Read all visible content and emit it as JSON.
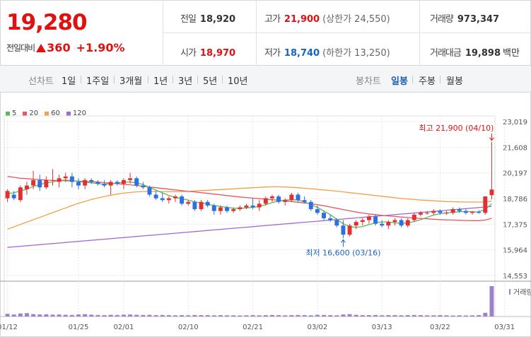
{
  "quote": {
    "price": "19,280",
    "change_label": "전일대비",
    "change_abs": "360",
    "change_pct": "+1.90%"
  },
  "stats": {
    "prev_close": {
      "label": "전일",
      "value": "18,920"
    },
    "high": {
      "label": "고가",
      "value": "21,900",
      "note": "(상한가 24,550)"
    },
    "volume": {
      "label": "거래량",
      "value": "973,347"
    },
    "open": {
      "label": "시가",
      "value": "18,970"
    },
    "low": {
      "label": "저가",
      "value": "18,740",
      "note": "(하한가 13,250)"
    },
    "amount": {
      "label": "거래대금",
      "value": "19,898",
      "unit": "백만"
    }
  },
  "periods": {
    "label": "선차트",
    "items": [
      "1일",
      "1주일",
      "3개월",
      "1년",
      "3년",
      "5년",
      "10년"
    ]
  },
  "candle_tabs": {
    "label": "봉차트",
    "items": [
      "일봉",
      "주봉",
      "월봉"
    ],
    "active": "일봉"
  },
  "colors": {
    "up": "#e0302f",
    "down": "#2f6fe0",
    "ma5": "#5cb85c",
    "ma20": "#e8585f",
    "ma60": "#f0a14a",
    "ma120": "#a06bd0",
    "volume": "#9b82c9"
  },
  "chart_data": {
    "type": "candlestick",
    "legend": [
      "5",
      "20",
      "60",
      "120"
    ],
    "y_ticks": [
      "23,019",
      "21,608",
      "20,197",
      "18,786",
      "17,375",
      "15,964",
      "14,553"
    ],
    "ylim": [
      14553,
      23019
    ],
    "x_ticks": [
      "01/12",
      "01/25",
      "02/01",
      "02/10",
      "02/21",
      "03/02",
      "03/13",
      "03/22",
      "03/31"
    ],
    "x_tick_index": [
      0,
      11,
      18,
      28,
      38,
      48,
      58,
      67,
      77
    ],
    "candles": [
      {
        "o": 18800,
        "h": 19300,
        "l": 18600,
        "c": 19200
      },
      {
        "o": 19000,
        "h": 19200,
        "l": 18700,
        "c": 18800
      },
      {
        "o": 18700,
        "h": 19500,
        "l": 18600,
        "c": 19400
      },
      {
        "o": 19300,
        "h": 19700,
        "l": 19000,
        "c": 19500
      },
      {
        "o": 19500,
        "h": 20300,
        "l": 19300,
        "c": 19800
      },
      {
        "o": 19800,
        "h": 20100,
        "l": 19200,
        "c": 19400
      },
      {
        "o": 19400,
        "h": 20000,
        "l": 19300,
        "c": 19800
      },
      {
        "o": 19800,
        "h": 20400,
        "l": 19500,
        "c": 19800
      },
      {
        "o": 19700,
        "h": 20100,
        "l": 19400,
        "c": 19900
      },
      {
        "o": 19900,
        "h": 20200,
        "l": 19700,
        "c": 20000
      },
      {
        "o": 20000,
        "h": 20200,
        "l": 19400,
        "c": 19700
      },
      {
        "o": 19700,
        "h": 19900,
        "l": 19300,
        "c": 19500
      },
      {
        "o": 19500,
        "h": 19900,
        "l": 19300,
        "c": 19800
      },
      {
        "o": 19800,
        "h": 19900,
        "l": 19600,
        "c": 19700
      },
      {
        "o": 19700,
        "h": 19800,
        "l": 19500,
        "c": 19600
      },
      {
        "o": 19600,
        "h": 19800,
        "l": 19400,
        "c": 19500
      },
      {
        "o": 19500,
        "h": 19800,
        "l": 19000,
        "c": 19700
      },
      {
        "o": 19700,
        "h": 19800,
        "l": 19500,
        "c": 19600
      },
      {
        "o": 19600,
        "h": 19900,
        "l": 19300,
        "c": 19800
      },
      {
        "o": 19800,
        "h": 20200,
        "l": 19600,
        "c": 19900
      },
      {
        "o": 19900,
        "h": 20000,
        "l": 19400,
        "c": 19500
      },
      {
        "o": 19500,
        "h": 19700,
        "l": 19300,
        "c": 19400
      },
      {
        "o": 19400,
        "h": 19500,
        "l": 18900,
        "c": 19000
      },
      {
        "o": 19000,
        "h": 19200,
        "l": 18700,
        "c": 18800
      },
      {
        "o": 18800,
        "h": 19100,
        "l": 18600,
        "c": 18700
      },
      {
        "o": 18700,
        "h": 18900,
        "l": 18500,
        "c": 18800
      },
      {
        "o": 18800,
        "h": 19000,
        "l": 18600,
        "c": 18900
      },
      {
        "o": 18900,
        "h": 19000,
        "l": 18400,
        "c": 18500
      },
      {
        "o": 18500,
        "h": 18700,
        "l": 18400,
        "c": 18600
      },
      {
        "o": 18600,
        "h": 18700,
        "l": 18100,
        "c": 18200
      },
      {
        "o": 18200,
        "h": 18700,
        "l": 18100,
        "c": 18600
      },
      {
        "o": 18600,
        "h": 18700,
        "l": 18300,
        "c": 18400
      },
      {
        "o": 18400,
        "h": 18500,
        "l": 17900,
        "c": 18100
      },
      {
        "o": 18100,
        "h": 18400,
        "l": 17900,
        "c": 18300
      },
      {
        "o": 18300,
        "h": 18400,
        "l": 18000,
        "c": 18100
      },
      {
        "o": 18100,
        "h": 18300,
        "l": 18000,
        "c": 18200
      },
      {
        "o": 18200,
        "h": 18400,
        "l": 18100,
        "c": 18300
      },
      {
        "o": 18300,
        "h": 18500,
        "l": 18200,
        "c": 18400
      },
      {
        "o": 18400,
        "h": 18800,
        "l": 18200,
        "c": 18300
      },
      {
        "o": 18300,
        "h": 18700,
        "l": 18100,
        "c": 18500
      },
      {
        "o": 18500,
        "h": 18900,
        "l": 18400,
        "c": 18800
      },
      {
        "o": 18800,
        "h": 19000,
        "l": 18600,
        "c": 18900
      },
      {
        "o": 18900,
        "h": 19000,
        "l": 18500,
        "c": 18600
      },
      {
        "o": 18600,
        "h": 18800,
        "l": 18400,
        "c": 18700
      },
      {
        "o": 18700,
        "h": 19100,
        "l": 18600,
        "c": 19000
      },
      {
        "o": 19000,
        "h": 19100,
        "l": 18600,
        "c": 18700
      },
      {
        "o": 18700,
        "h": 18900,
        "l": 18500,
        "c": 18600
      },
      {
        "o": 18600,
        "h": 18700,
        "l": 18100,
        "c": 18200
      },
      {
        "o": 18200,
        "h": 18400,
        "l": 17900,
        "c": 18000
      },
      {
        "o": 18000,
        "h": 18100,
        "l": 17600,
        "c": 17700
      },
      {
        "o": 17700,
        "h": 17900,
        "l": 17500,
        "c": 17600
      },
      {
        "o": 17600,
        "h": 17700,
        "l": 17200,
        "c": 17300
      },
      {
        "o": 17300,
        "h": 17600,
        "l": 16600,
        "c": 16800
      },
      {
        "o": 16800,
        "h": 17400,
        "l": 16700,
        "c": 17300
      },
      {
        "o": 17300,
        "h": 17600,
        "l": 17100,
        "c": 17500
      },
      {
        "o": 17500,
        "h": 17700,
        "l": 17300,
        "c": 17600
      },
      {
        "o": 17600,
        "h": 17900,
        "l": 17400,
        "c": 17800
      },
      {
        "o": 17800,
        "h": 17900,
        "l": 17300,
        "c": 17400
      },
      {
        "o": 17400,
        "h": 17600,
        "l": 17200,
        "c": 17300
      },
      {
        "o": 17300,
        "h": 17600,
        "l": 17100,
        "c": 17500
      },
      {
        "o": 17500,
        "h": 17700,
        "l": 17300,
        "c": 17600
      },
      {
        "o": 17600,
        "h": 17700,
        "l": 17200,
        "c": 17300
      },
      {
        "o": 17300,
        "h": 17700,
        "l": 17200,
        "c": 17600
      },
      {
        "o": 17600,
        "h": 18000,
        "l": 17500,
        "c": 17900
      },
      {
        "o": 17900,
        "h": 18100,
        "l": 17800,
        "c": 18000
      },
      {
        "o": 18000,
        "h": 18100,
        "l": 17900,
        "c": 18000
      },
      {
        "o": 18000,
        "h": 18200,
        "l": 17900,
        "c": 18100
      },
      {
        "o": 18100,
        "h": 18200,
        "l": 17900,
        "c": 18000
      },
      {
        "o": 18000,
        "h": 18100,
        "l": 17900,
        "c": 18000
      },
      {
        "o": 18000,
        "h": 18300,
        "l": 17900,
        "c": 18200
      },
      {
        "o": 18200,
        "h": 18300,
        "l": 18000,
        "c": 18100
      },
      {
        "o": 18100,
        "h": 18200,
        "l": 17900,
        "c": 18000
      },
      {
        "o": 18000,
        "h": 18100,
        "l": 17900,
        "c": 18050
      },
      {
        "o": 18050,
        "h": 18150,
        "l": 17950,
        "c": 18000
      },
      {
        "o": 18000,
        "h": 18900,
        "l": 17900,
        "c": 18900
      },
      {
        "o": 18970,
        "h": 21900,
        "l": 18740,
        "c": 19280
      }
    ],
    "ma5": [
      19050,
      19100,
      19200,
      19300,
      19450,
      19550,
      19650,
      19700,
      19780,
      19800,
      19780,
      19720,
      19680,
      19650,
      19600,
      19580,
      19600,
      19640,
      19680,
      19700,
      19650,
      19550,
      19400,
      19250,
      19100,
      18950,
      18850,
      18780,
      18700,
      18600,
      18550,
      18480,
      18400,
      18350,
      18300,
      18250,
      18250,
      18270,
      18300,
      18350,
      18450,
      18560,
      18650,
      18700,
      18720,
      18700,
      18600,
      18450,
      18300,
      18100,
      17900,
      17650,
      17400,
      17250,
      17200,
      17250,
      17350,
      17450,
      17500,
      17500,
      17450,
      17420,
      17450,
      17520,
      17620,
      17750,
      17880,
      17950,
      18000,
      18030,
      18060,
      18070,
      18060,
      18050,
      18200,
      18500
    ],
    "ma20": [
      20000,
      19950,
      19900,
      19880,
      19850,
      19830,
      19800,
      19780,
      19770,
      19760,
      19750,
      19740,
      19730,
      19710,
      19690,
      19660,
      19630,
      19600,
      19570,
      19540,
      19500,
      19460,
      19420,
      19380,
      19340,
      19300,
      19260,
      19220,
      19180,
      19150,
      19110,
      19070,
      19030,
      18990,
      18950,
      18910,
      18870,
      18840,
      18810,
      18780,
      18750,
      18720,
      18690,
      18660,
      18620,
      18580,
      18540,
      18500,
      18450,
      18390,
      18320,
      18250,
      18180,
      18110,
      18040,
      17990,
      17940,
      17900,
      17860,
      17830,
      17800,
      17770,
      17740,
      17710,
      17690,
      17670,
      17650,
      17630,
      17610,
      17600,
      17590,
      17580,
      17570,
      17570,
      17600,
      17700
    ],
    "ma60": [
      17100,
      17230,
      17360,
      17490,
      17620,
      17750,
      17880,
      18010,
      18140,
      18270,
      18400,
      18520,
      18630,
      18730,
      18820,
      18900,
      18970,
      19030,
      19080,
      19120,
      19150,
      19170,
      19180,
      19180,
      19170,
      19160,
      19160,
      19170,
      19180,
      19200,
      19220,
      19240,
      19260,
      19280,
      19300,
      19320,
      19340,
      19360,
      19380,
      19400,
      19420,
      19430,
      19430,
      19420,
      19400,
      19380,
      19350,
      19320,
      19290,
      19260,
      19230,
      19190,
      19150,
      19110,
      19070,
      19030,
      18990,
      18950,
      18910,
      18870,
      18830,
      18790,
      18760,
      18730,
      18700,
      18680,
      18660,
      18640,
      18620,
      18610,
      18600,
      18590,
      18590,
      18590,
      18600,
      18640
    ],
    "ma120": [
      16100,
      16130,
      16160,
      16190,
      16220,
      16250,
      16280,
      16310,
      16340,
      16370,
      16400,
      16430,
      16460,
      16490,
      16520,
      16550,
      16580,
      16610,
      16640,
      16670,
      16700,
      16730,
      16760,
      16790,
      16820,
      16850,
      16880,
      16910,
      16940,
      16970,
      17000,
      17030,
      17060,
      17090,
      17120,
      17150,
      17180,
      17210,
      17240,
      17270,
      17300,
      17330,
      17360,
      17390,
      17420,
      17450,
      17480,
      17510,
      17540,
      17570,
      17600,
      17630,
      17660,
      17690,
      17720,
      17750,
      17780,
      17810,
      17840,
      17870,
      17900,
      17930,
      17960,
      17990,
      18020,
      18050,
      18080,
      18110,
      18140,
      18170,
      18200,
      18230,
      18260,
      18290,
      18320,
      18350
    ],
    "volume": [
      80,
      60,
      90,
      100,
      70,
      60,
      65,
      55,
      60,
      50,
      45,
      60,
      70,
      55,
      45,
      40,
      50,
      45,
      55,
      60,
      50,
      45,
      50,
      40,
      45,
      40,
      35,
      40,
      35,
      45,
      40,
      40,
      35,
      40,
      35,
      35,
      30,
      35,
      40,
      35,
      40,
      45,
      40,
      35,
      40,
      45,
      40,
      35,
      50,
      45,
      40,
      35,
      60,
      70,
      50,
      40,
      40,
      45,
      35,
      40,
      40,
      35,
      40,
      45,
      40,
      35,
      35,
      40,
      35,
      30,
      35,
      30,
      35,
      40,
      110,
      900
    ],
    "volume_label": "거래량",
    "annotations": [
      {
        "text": "최고 21,900 (04/10)",
        "index": 75,
        "value": 21900,
        "kind": "high"
      },
      {
        "text": "최저 16,600 (03/16)",
        "index": 52,
        "value": 16600,
        "kind": "low"
      }
    ]
  }
}
